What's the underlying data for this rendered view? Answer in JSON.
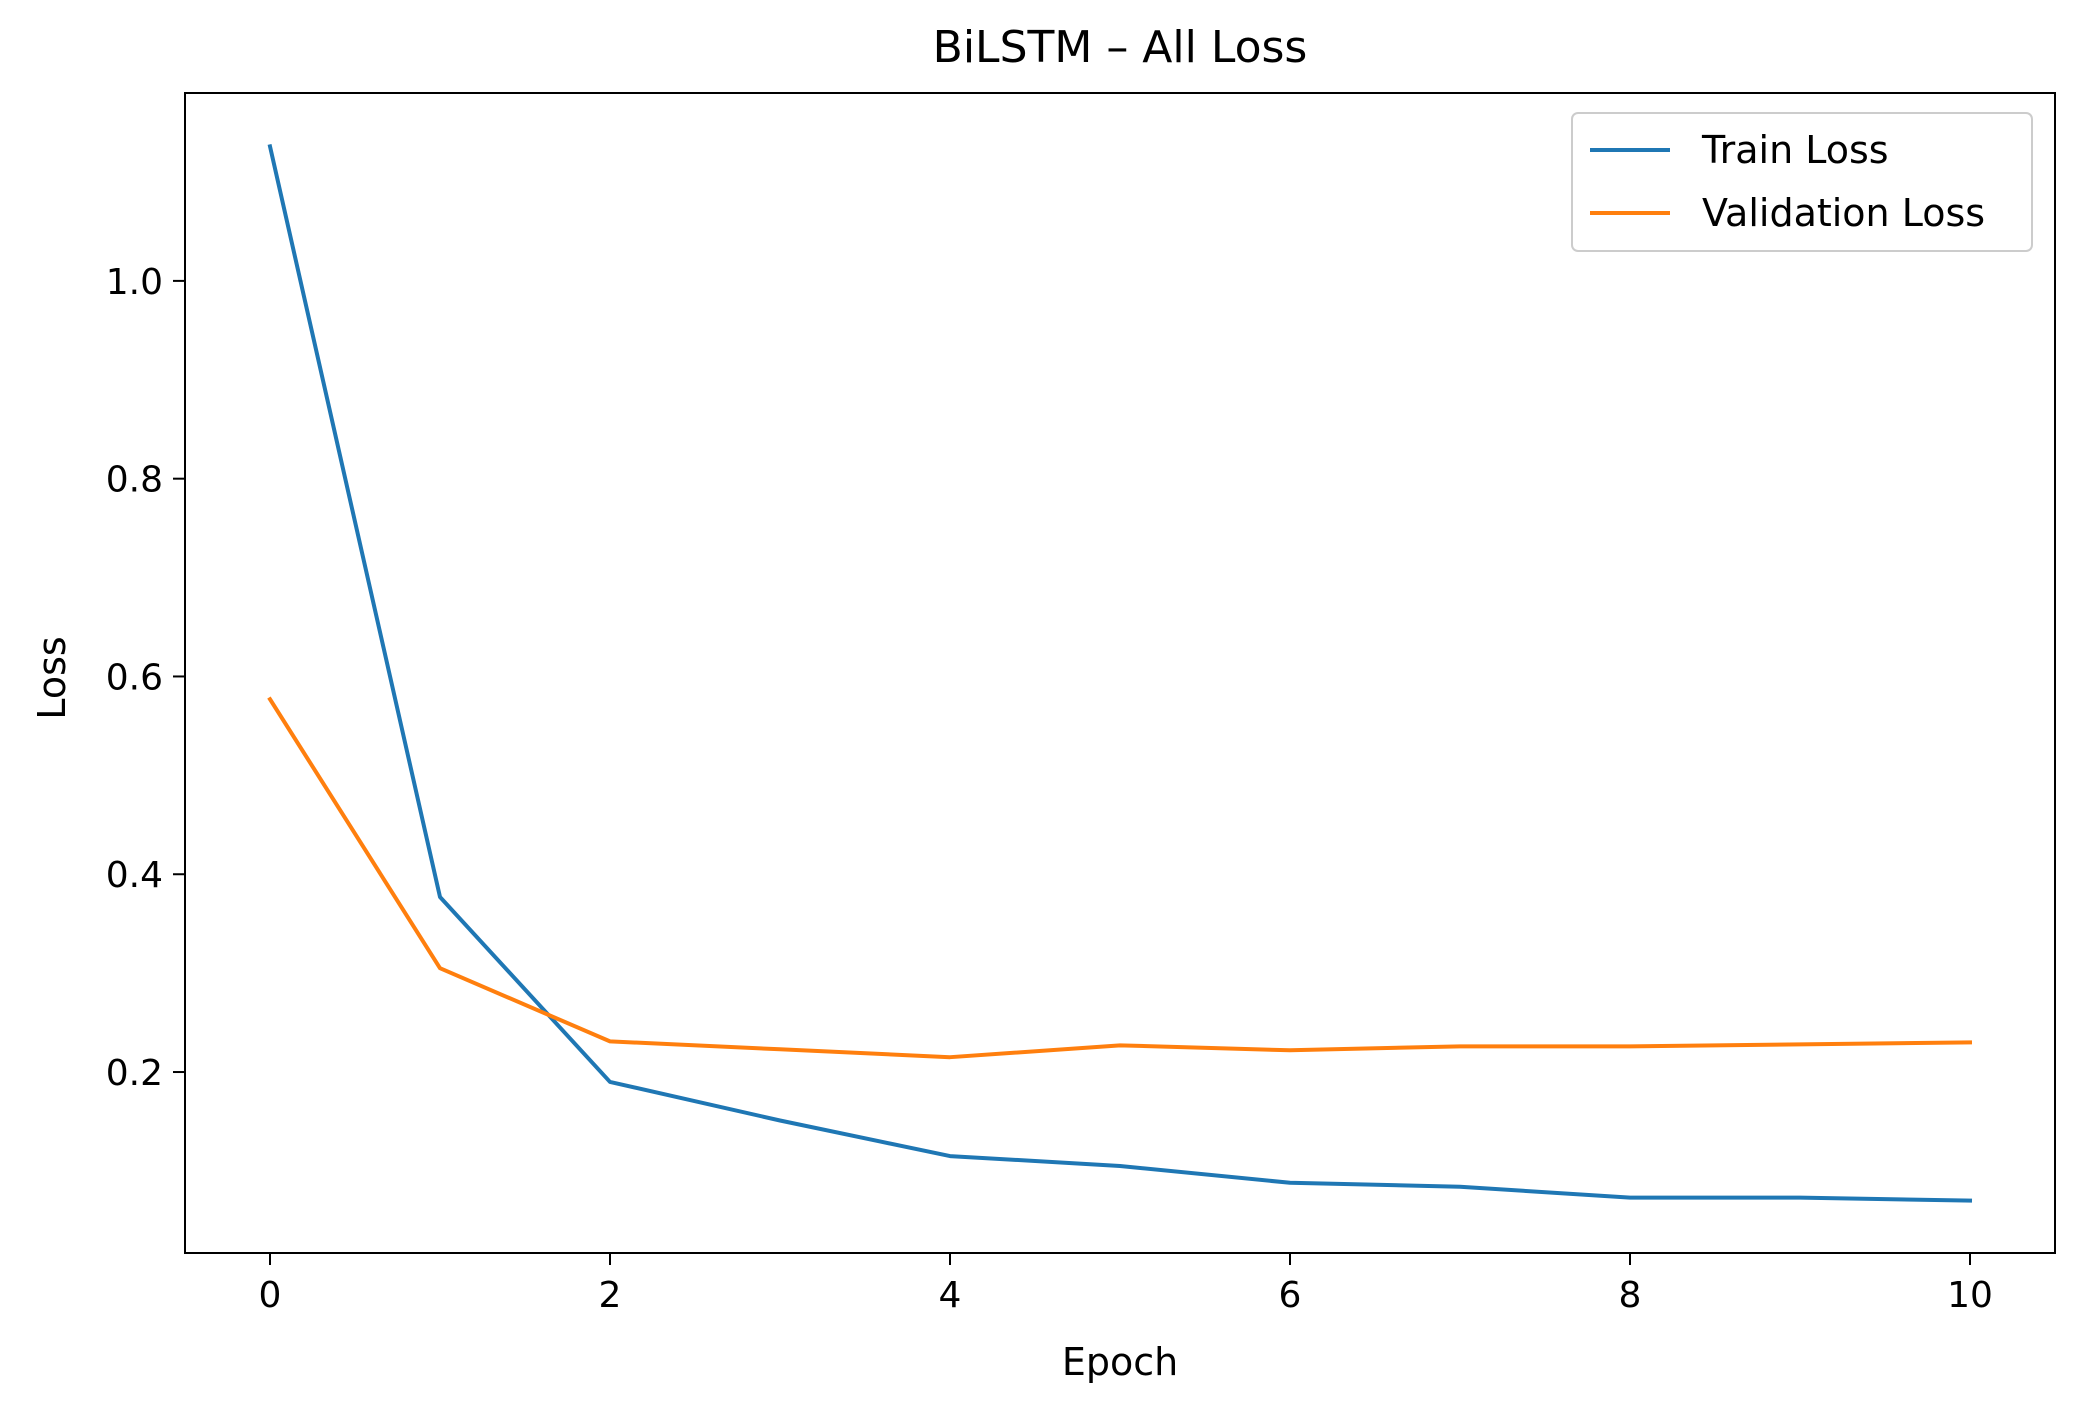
{
  "chart_data": {
    "type": "line",
    "title": "BiLSTM – All Loss",
    "xlabel": "Epoch",
    "ylabel": "Loss",
    "x": [
      0,
      1,
      2,
      3,
      4,
      5,
      6,
      7,
      8,
      9,
      10
    ],
    "xlim": [
      -0.5,
      10.5
    ],
    "ylim": [
      0.017,
      1.19
    ],
    "xticks": [
      "0",
      "2",
      "4",
      "6",
      "8",
      "10"
    ],
    "yticks": [
      "0.2",
      "0.4",
      "0.6",
      "0.8",
      "1.0"
    ],
    "grid": false,
    "legend_position": "top-right",
    "series": [
      {
        "name": "Train Loss",
        "color": "#1f77b4",
        "values": [
          1.136,
          0.377,
          0.19,
          0.151,
          0.115,
          0.105,
          0.088,
          0.084,
          0.073,
          0.073,
          0.07
        ]
      },
      {
        "name": "Validation Loss",
        "color": "#ff7f0e",
        "values": [
          0.577,
          0.305,
          0.231,
          0.223,
          0.215,
          0.227,
          0.222,
          0.226,
          0.226,
          0.228,
          0.23
        ]
      }
    ]
  }
}
